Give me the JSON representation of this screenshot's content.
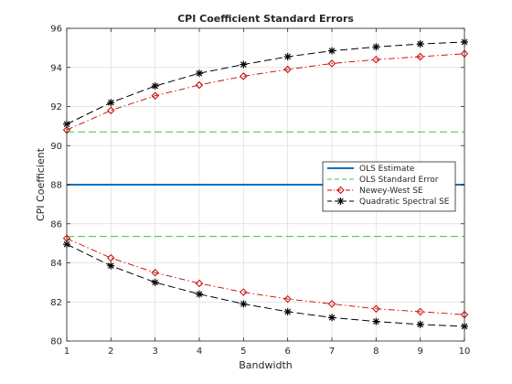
{
  "chart_data": {
    "type": "line",
    "title": "CPI Coefficient Standard Errors",
    "xlabel": "Bandwidth",
    "ylabel": "CPI Coefficient",
    "xlim": [
      1,
      10
    ],
    "ylim": [
      80,
      96
    ],
    "xticks": [
      1,
      2,
      3,
      4,
      5,
      6,
      7,
      8,
      9,
      10
    ],
    "yticks": [
      80,
      82,
      84,
      86,
      88,
      90,
      92,
      94,
      96
    ],
    "grid": true,
    "legend_position": "right",
    "x": [
      1,
      2,
      3,
      4,
      5,
      6,
      7,
      8,
      9,
      10
    ],
    "series": [
      {
        "name": "OLS Estimate",
        "color": "#0072bd",
        "style": "solid",
        "values": [
          [
            88.0,
            88.0,
            88.0,
            88.0,
            88.0,
            88.0,
            88.0,
            88.0,
            88.0,
            88.0
          ]
        ]
      },
      {
        "name": "OLS Standard Error",
        "color": "#33cc33",
        "style": "dashed",
        "values": [
          [
            90.7,
            90.7,
            90.7,
            90.7,
            90.7,
            90.7,
            90.7,
            90.7,
            90.7,
            90.7
          ],
          [
            85.35,
            85.35,
            85.35,
            85.35,
            85.35,
            85.35,
            85.35,
            85.35,
            85.35,
            85.35
          ]
        ]
      },
      {
        "name": "Newey-West SE",
        "color": "#cc0000",
        "style": "dashdot",
        "marker": "diamond",
        "values": [
          [
            90.8,
            91.8,
            92.55,
            93.1,
            93.55,
            93.9,
            94.2,
            94.4,
            94.55,
            94.7
          ],
          [
            85.25,
            84.25,
            83.5,
            82.95,
            82.5,
            82.15,
            81.9,
            81.65,
            81.5,
            81.35
          ]
        ]
      },
      {
        "name": "Quadratic Spectral SE",
        "color": "#000000",
        "style": "dashed",
        "marker": "star",
        "values": [
          [
            91.1,
            92.2,
            93.05,
            93.7,
            94.15,
            94.55,
            94.85,
            95.05,
            95.2,
            95.3
          ],
          [
            84.95,
            83.85,
            83.0,
            82.4,
            81.9,
            81.5,
            81.2,
            81.0,
            80.85,
            80.75
          ]
        ]
      }
    ]
  }
}
